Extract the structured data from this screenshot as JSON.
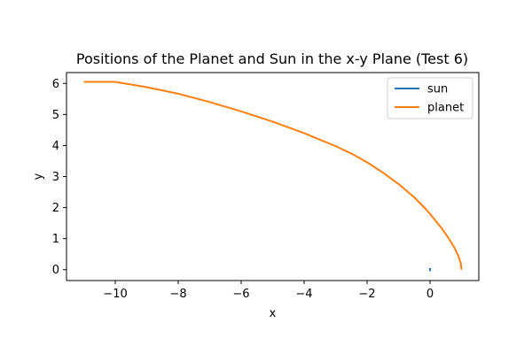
{
  "chart_data": {
    "type": "line",
    "title": "Positions of the Planet and Sun in the x-y Plane (Test 6)",
    "xlabel": "x",
    "ylabel": "y",
    "xlim": [
      -11.55,
      1.55
    ],
    "ylim": [
      -0.35,
      6.35
    ],
    "xticks": [
      -10,
      -8,
      -6,
      -4,
      -2,
      0
    ],
    "xtick_labels": [
      "−10",
      "−8",
      "−6",
      "−4",
      "−2",
      "0"
    ],
    "yticks": [
      0,
      1,
      2,
      3,
      4,
      5,
      6
    ],
    "ytick_labels": [
      "0",
      "1",
      "2",
      "3",
      "4",
      "5",
      "6"
    ],
    "grid": false,
    "legend_position": "top-right",
    "series": [
      {
        "name": "sun",
        "color": "#1f77b4",
        "x": [
          0,
          0
        ],
        "y": [
          -0.05,
          0.05
        ]
      },
      {
        "name": "planet",
        "color": "#ff7f0e",
        "x": [
          1.0,
          0.98,
          0.9,
          0.78,
          0.6,
          0.38,
          0.12,
          -0.15,
          -0.5,
          -1.0,
          -1.5,
          -2.0,
          -2.5,
          -3.0,
          -4.0,
          -5.0,
          -6.0,
          -7.0,
          -8.0,
          -9.0,
          -10.0,
          -11.0
        ],
        "y": [
          0.0,
          0.2,
          0.44,
          0.7,
          1.0,
          1.32,
          1.65,
          1.97,
          2.33,
          2.76,
          3.13,
          3.46,
          3.74,
          3.98,
          4.4,
          4.77,
          5.1,
          5.4,
          5.67,
          5.88,
          6.05,
          6.05
        ]
      }
    ]
  }
}
